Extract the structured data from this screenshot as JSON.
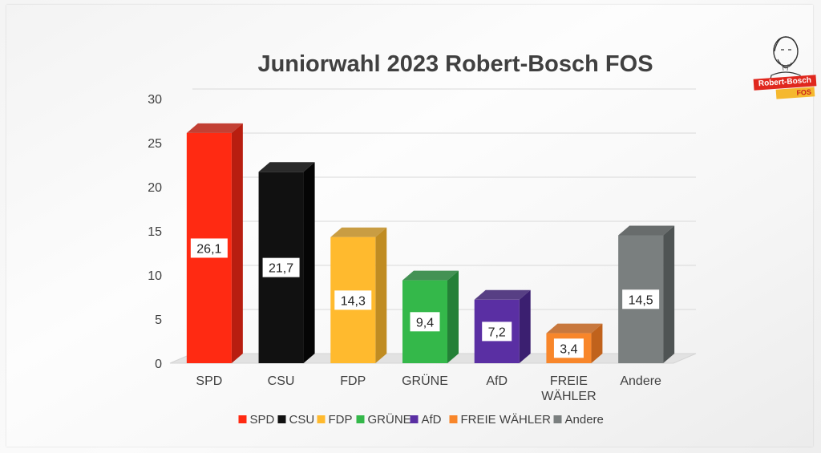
{
  "logo": {
    "line1": "Robert-Bosch",
    "line2": "FOS"
  },
  "chart_data": {
    "type": "bar",
    "title": "Juniorwahl 2023 Robert-Bosch FOS",
    "xlabel": "",
    "ylabel": "",
    "ylim": [
      0,
      30
    ],
    "yticks": [
      0,
      5,
      10,
      15,
      20,
      25,
      30
    ],
    "grid": true,
    "legend_position": "bottom",
    "categories": [
      "SPD",
      "CSU",
      "FDP",
      "GRÜNE",
      "AfD",
      "FREIE WÄHLER",
      "Andere"
    ],
    "category_labels": [
      [
        "SPD"
      ],
      [
        "CSU"
      ],
      [
        "FDP"
      ],
      [
        "GRÜNE"
      ],
      [
        "AfD"
      ],
      [
        "FREIE",
        "WÄHLER"
      ],
      [
        "Andere"
      ]
    ],
    "values": [
      26.1,
      21.7,
      14.3,
      9.4,
      7.2,
      3.4,
      14.5
    ],
    "value_labels": [
      "26,1",
      "21,7",
      "14,3",
      "9,4",
      "7,2",
      "3,4",
      "14,5"
    ],
    "colors": [
      "#ff2a12",
      "#111111",
      "#ffba2e",
      "#34b84a",
      "#5a2fa3",
      "#f8862a",
      "#7a7f7f"
    ],
    "side_colors": [
      "#b81e10",
      "#050505",
      "#c08c22",
      "#248037",
      "#3b1f70",
      "#c0621c",
      "#4f5454"
    ]
  }
}
